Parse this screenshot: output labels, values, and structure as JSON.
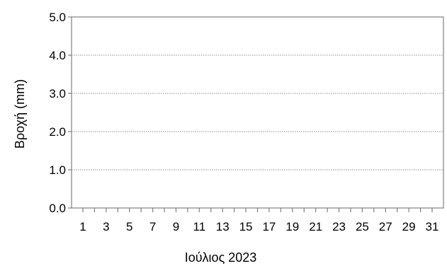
{
  "chart_data": {
    "type": "bar",
    "title": "",
    "xlabel": "Ιούλιος 2023",
    "ylabel": "Βροχή (mm)",
    "ylim": [
      0,
      5
    ],
    "yticks": [
      "0.0",
      "1.0",
      "2.0",
      "3.0",
      "4.0",
      "5.0"
    ],
    "xlim": [
      1,
      31
    ],
    "xtick_labels": [
      "1",
      "3",
      "5",
      "7",
      "9",
      "11",
      "13",
      "15",
      "17",
      "19",
      "21",
      "23",
      "25",
      "27",
      "29",
      "31"
    ],
    "categories": [
      "1",
      "2",
      "3",
      "4",
      "5",
      "6",
      "7",
      "8",
      "9",
      "10",
      "11",
      "12",
      "13",
      "14",
      "15",
      "16",
      "17",
      "18",
      "19",
      "20",
      "21",
      "22",
      "23",
      "24",
      "25",
      "26",
      "27",
      "28",
      "29",
      "30",
      "31"
    ],
    "values": [
      0,
      0,
      0,
      0,
      0,
      0,
      0,
      0,
      0,
      0,
      0,
      0,
      0,
      0,
      0,
      0,
      0,
      0,
      0,
      0,
      0,
      0,
      0,
      0,
      0,
      0,
      0,
      0,
      0,
      0,
      0
    ],
    "grid": true,
    "colors": {
      "grid": "#8c8c8c",
      "axis": "#808080",
      "text": "#000000",
      "bar": "#4472c4"
    }
  }
}
